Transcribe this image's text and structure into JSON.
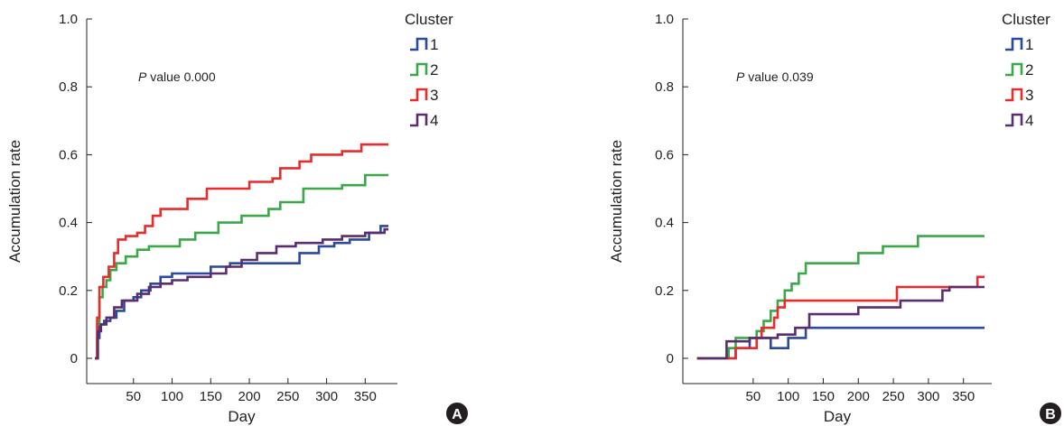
{
  "chart_data": [
    {
      "type": "line",
      "panel_label": "A",
      "xlabel": "Day",
      "ylabel": "Accumulation rate",
      "xticks": [
        50,
        100,
        150,
        200,
        250,
        300,
        350
      ],
      "yticks": [
        "0",
        "0.2",
        "0.4",
        "0.6",
        "0.8",
        "1.0"
      ],
      "ylim": [
        0,
        1.0
      ],
      "xlim": [
        0,
        380
      ],
      "step": true,
      "annotation": {
        "italic": "P",
        "text": " value 0.000"
      },
      "legend": {
        "title": "Cluster",
        "position": "right"
      },
      "series": [
        {
          "name": "1",
          "color": "#2b4a9c",
          "points": [
            [
              0,
              0
            ],
            [
              3,
              0.06
            ],
            [
              6,
              0.1
            ],
            [
              12,
              0.11
            ],
            [
              20,
              0.12
            ],
            [
              28,
              0.14
            ],
            [
              38,
              0.17
            ],
            [
              50,
              0.18
            ],
            [
              60,
              0.2
            ],
            [
              72,
              0.22
            ],
            [
              85,
              0.24
            ],
            [
              100,
              0.25
            ],
            [
              125,
              0.25
            ],
            [
              150,
              0.27
            ],
            [
              175,
              0.28
            ],
            [
              205,
              0.28
            ],
            [
              230,
              0.28
            ],
            [
              265,
              0.31
            ],
            [
              290,
              0.33
            ],
            [
              310,
              0.34
            ],
            [
              330,
              0.35
            ],
            [
              355,
              0.37
            ],
            [
              370,
              0.39
            ],
            [
              380,
              0.39
            ]
          ]
        },
        {
          "name": "2",
          "color": "#3aa848",
          "points": [
            [
              0,
              0
            ],
            [
              3,
              0.1
            ],
            [
              6,
              0.18
            ],
            [
              10,
              0.21
            ],
            [
              15,
              0.23
            ],
            [
              20,
              0.26
            ],
            [
              28,
              0.28
            ],
            [
              40,
              0.3
            ],
            [
              55,
              0.32
            ],
            [
              70,
              0.33
            ],
            [
              90,
              0.33
            ],
            [
              110,
              0.35
            ],
            [
              130,
              0.37
            ],
            [
              160,
              0.4
            ],
            [
              190,
              0.42
            ],
            [
              225,
              0.44
            ],
            [
              240,
              0.46
            ],
            [
              270,
              0.5
            ],
            [
              320,
              0.51
            ],
            [
              350,
              0.54
            ],
            [
              380,
              0.54
            ]
          ]
        },
        {
          "name": "3",
          "color": "#e82c2c",
          "points": [
            [
              0,
              0
            ],
            [
              3,
              0.12
            ],
            [
              6,
              0.21
            ],
            [
              11,
              0.24
            ],
            [
              18,
              0.27
            ],
            [
              25,
              0.31
            ],
            [
              30,
              0.35
            ],
            [
              40,
              0.36
            ],
            [
              55,
              0.37
            ],
            [
              65,
              0.39
            ],
            [
              75,
              0.42
            ],
            [
              85,
              0.44
            ],
            [
              105,
              0.44
            ],
            [
              120,
              0.47
            ],
            [
              145,
              0.5
            ],
            [
              175,
              0.5
            ],
            [
              200,
              0.52
            ],
            [
              230,
              0.53
            ],
            [
              240,
              0.56
            ],
            [
              265,
              0.58
            ],
            [
              280,
              0.6
            ],
            [
              320,
              0.61
            ],
            [
              345,
              0.63
            ],
            [
              380,
              0.63
            ]
          ]
        },
        {
          "name": "4",
          "color": "#5b2d6e",
          "points": [
            [
              0,
              0
            ],
            [
              4,
              0.08
            ],
            [
              8,
              0.1
            ],
            [
              15,
              0.12
            ],
            [
              25,
              0.15
            ],
            [
              35,
              0.17
            ],
            [
              55,
              0.19
            ],
            [
              70,
              0.21
            ],
            [
              85,
              0.22
            ],
            [
              100,
              0.23
            ],
            [
              120,
              0.24
            ],
            [
              150,
              0.25
            ],
            [
              170,
              0.27
            ],
            [
              190,
              0.29
            ],
            [
              210,
              0.31
            ],
            [
              235,
              0.33
            ],
            [
              260,
              0.34
            ],
            [
              295,
              0.35
            ],
            [
              320,
              0.36
            ],
            [
              350,
              0.37
            ],
            [
              375,
              0.38
            ],
            [
              380,
              0.38
            ]
          ]
        }
      ]
    },
    {
      "type": "line",
      "panel_label": "B",
      "xlabel": "Day",
      "ylabel": "Accumulation rate",
      "xticks": [
        50,
        100,
        150,
        200,
        250,
        300,
        350
      ],
      "yticks": [
        "0",
        "0.2",
        "0.4",
        "0.6",
        "0.8",
        "1.0"
      ],
      "ylim": [
        0,
        1.0
      ],
      "xlim": [
        -40,
        380
      ],
      "step": true,
      "annotation": {
        "italic": "P",
        "text": " value 0.039"
      },
      "legend": {
        "title": "Cluster",
        "position": "right"
      },
      "series": [
        {
          "name": "1",
          "color": "#2b4a9c",
          "points": [
            [
              -30,
              0
            ],
            [
              20,
              0
            ],
            [
              25,
              0.03
            ],
            [
              40,
              0.03
            ],
            [
              45,
              0.06
            ],
            [
              60,
              0.06
            ],
            [
              75,
              0.03
            ],
            [
              90,
              0.03
            ],
            [
              100,
              0.06
            ],
            [
              115,
              0.06
            ],
            [
              125,
              0.09
            ],
            [
              380,
              0.09
            ]
          ]
        },
        {
          "name": "2",
          "color": "#3aa848",
          "points": [
            [
              -30,
              0
            ],
            [
              8,
              0
            ],
            [
              15,
              0.03
            ],
            [
              25,
              0.06
            ],
            [
              40,
              0.06
            ],
            [
              55,
              0.08
            ],
            [
              65,
              0.11
            ],
            [
              75,
              0.14
            ],
            [
              85,
              0.17
            ],
            [
              95,
              0.2
            ],
            [
              105,
              0.22
            ],
            [
              115,
              0.25
            ],
            [
              125,
              0.28
            ],
            [
              190,
              0.28
            ],
            [
              200,
              0.31
            ],
            [
              235,
              0.33
            ],
            [
              285,
              0.36
            ],
            [
              380,
              0.36
            ]
          ]
        },
        {
          "name": "3",
          "color": "#e82c2c",
          "points": [
            [
              -30,
              0
            ],
            [
              18,
              0
            ],
            [
              25,
              0.03
            ],
            [
              40,
              0.03
            ],
            [
              55,
              0.06
            ],
            [
              62,
              0.09
            ],
            [
              80,
              0.12
            ],
            [
              85,
              0.15
            ],
            [
              95,
              0.17
            ],
            [
              120,
              0.17
            ],
            [
              255,
              0.21
            ],
            [
              370,
              0.24
            ],
            [
              380,
              0.24
            ]
          ]
        },
        {
          "name": "4",
          "color": "#5b2d6e",
          "points": [
            [
              -30,
              0
            ],
            [
              5,
              0
            ],
            [
              12,
              0.05
            ],
            [
              30,
              0.05
            ],
            [
              45,
              0.06
            ],
            [
              60,
              0.06
            ],
            [
              75,
              0.06
            ],
            [
              85,
              0.07
            ],
            [
              110,
              0.09
            ],
            [
              130,
              0.13
            ],
            [
              185,
              0.13
            ],
            [
              200,
              0.15
            ],
            [
              260,
              0.17
            ],
            [
              320,
              0.2
            ],
            [
              330,
              0.21
            ],
            [
              380,
              0.21
            ]
          ]
        }
      ]
    }
  ]
}
